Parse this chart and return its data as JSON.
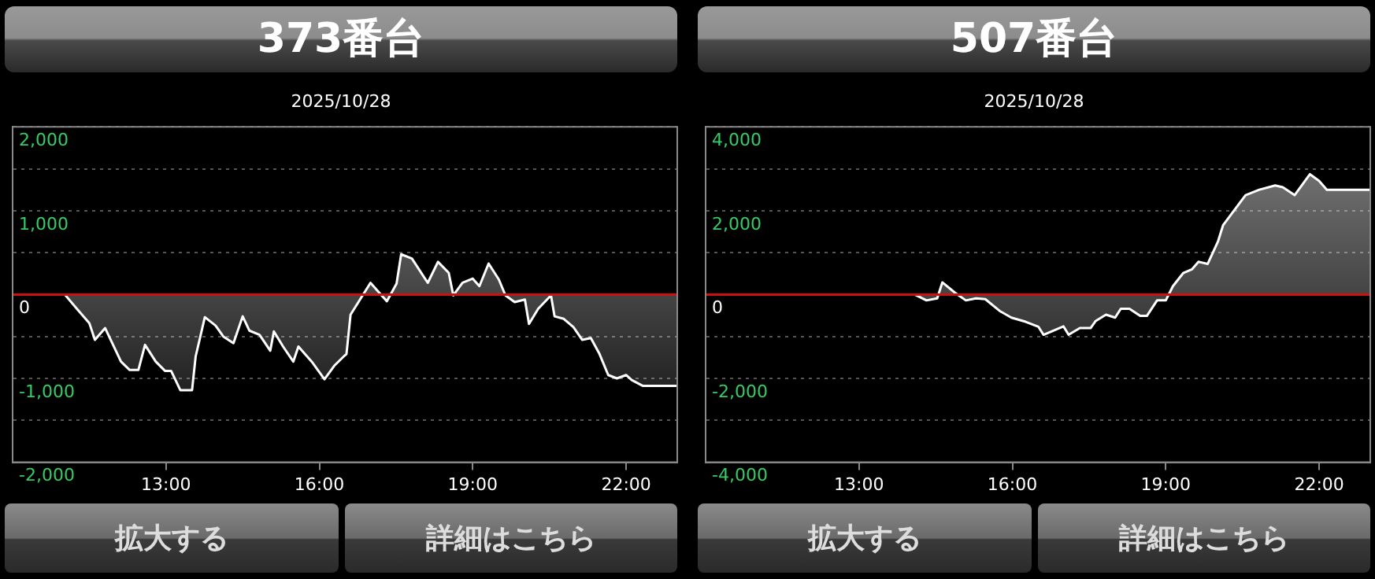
{
  "chart_data": [
    {
      "type": "area",
      "title": "373番台",
      "subtitle": "2025/10/28",
      "annotations": [
        "拡大する",
        "詳細はこちら"
      ],
      "x": [
        10.0,
        11.02,
        11.27,
        11.5,
        11.61,
        11.81,
        12.12,
        12.29,
        12.46,
        12.59,
        12.8,
        12.98,
        13.1,
        13.28,
        13.51,
        13.58,
        13.76,
        13.97,
        14.12,
        14.32,
        14.5,
        14.63,
        14.83,
        15.04,
        15.11,
        15.29,
        15.49,
        15.59,
        15.85,
        16.1,
        16.29,
        16.49,
        16.53,
        16.61,
        17.0,
        17.32,
        17.51,
        17.6,
        17.81,
        18.12,
        18.32,
        18.53,
        18.62,
        18.8,
        19.0,
        19.13,
        19.31,
        19.51,
        19.64,
        19.82,
        20.02,
        20.1,
        20.28,
        20.53,
        20.6,
        20.78,
        20.97,
        21.14,
        21.31,
        21.48,
        21.65,
        21.82,
        22.0,
        22.11,
        22.33,
        23.0
      ],
      "series": [
        {
          "color": "#ffffff",
          "values": [
            0,
            0,
            -180,
            -340,
            -540,
            -400,
            -800,
            -900,
            -900,
            -600,
            -800,
            -910,
            -910,
            -1140,
            -1140,
            -740,
            -270,
            -370,
            -500,
            -580,
            -260,
            -430,
            -480,
            -670,
            -440,
            -620,
            -800,
            -620,
            -800,
            -1010,
            -850,
            -730,
            -710,
            -240,
            140,
            -80,
            130,
            480,
            430,
            140,
            390,
            260,
            -10,
            140,
            190,
            100,
            370,
            180,
            -10,
            -90,
            -60,
            -350,
            -170,
            -10,
            -260,
            -290,
            -390,
            -540,
            -520,
            -710,
            -960,
            -1000,
            -960,
            -1020,
            -1090,
            -1090
          ]
        }
      ],
      "xlim": [
        10,
        23
      ],
      "xticks": [
        {
          "value": 13,
          "label": "13:00"
        },
        {
          "value": 16,
          "label": "16:00"
        },
        {
          "value": 19,
          "label": "19:00"
        },
        {
          "value": 22,
          "label": "22:00"
        }
      ],
      "ylim": [
        -2000,
        2000
      ],
      "yticks": [
        {
          "value": -2000,
          "label": "-2,000"
        },
        {
          "value": -1500,
          "label": null
        },
        {
          "value": -1000,
          "label": "-1,000"
        },
        {
          "value": -500,
          "label": null
        },
        0,
        {
          "value": 500,
          "label": null
        },
        {
          "value": 1000,
          "label": "1,000"
        },
        {
          "value": 1500,
          "label": null
        },
        {
          "value": 2000,
          "label": "2,000"
        }
      ],
      "grid": "y",
      "ref_lines": [
        {
          "axis": "y",
          "value": 0,
          "color": "#cc1111"
        }
      ]
    },
    {
      "type": "area",
      "title": "507番台",
      "subtitle": "2025/10/28",
      "annotations": [
        "拡大する",
        "詳細はこちら"
      ],
      "x": [
        10.0,
        14.09,
        14.32,
        14.53,
        14.63,
        14.88,
        15.09,
        15.29,
        15.47,
        15.75,
        15.98,
        16.26,
        16.51,
        16.61,
        17.0,
        17.1,
        17.32,
        17.53,
        17.63,
        17.83,
        18.01,
        18.12,
        18.29,
        18.5,
        18.63,
        18.83,
        19.0,
        19.14,
        19.34,
        19.51,
        19.64,
        19.82,
        20.02,
        20.12,
        20.56,
        20.83,
        21.14,
        21.29,
        21.52,
        21.82,
        22.0,
        22.15,
        23.0
      ],
      "series": [
        {
          "color": "#ffffff",
          "values": [
            0,
            0,
            -140,
            -90,
            290,
            40,
            -140,
            -90,
            -110,
            -390,
            -550,
            -650,
            -770,
            -960,
            -760,
            -960,
            -800,
            -800,
            -630,
            -480,
            -550,
            -340,
            -340,
            -510,
            -510,
            -140,
            -140,
            200,
            510,
            600,
            780,
            730,
            1260,
            1650,
            2370,
            2500,
            2600,
            2560,
            2370,
            2870,
            2710,
            2500,
            2500
          ]
        }
      ],
      "xlim": [
        10,
        23
      ],
      "xticks": [
        {
          "value": 13,
          "label": "13:00"
        },
        {
          "value": 16,
          "label": "16:00"
        },
        {
          "value": 19,
          "label": "19:00"
        },
        {
          "value": 22,
          "label": "22:00"
        }
      ],
      "ylim": [
        -4000,
        4000
      ],
      "yticks": [
        {
          "value": -4000,
          "label": "-4,000"
        },
        {
          "value": -3000,
          "label": null
        },
        {
          "value": -2000,
          "label": "-2,000"
        },
        {
          "value": -1000,
          "label": null
        },
        0,
        {
          "value": 1000,
          "label": null
        },
        {
          "value": 2000,
          "label": "2,000"
        },
        {
          "value": 3000,
          "label": null
        },
        {
          "value": 4000,
          "label": "4,000"
        }
      ],
      "grid": "y",
      "ref_lines": [
        {
          "axis": "y",
          "value": 0,
          "color": "#cc1111"
        }
      ]
    }
  ]
}
